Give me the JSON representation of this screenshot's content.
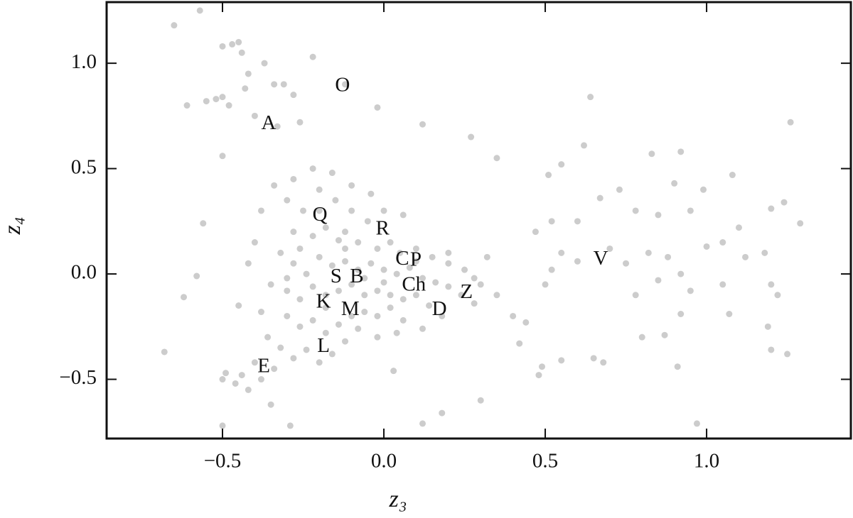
{
  "chart_data": {
    "type": "scatter",
    "x_label": "z₃",
    "y_label": "z₄",
    "xlim": [
      -0.859,
      1.447
    ],
    "ylim": [
      -0.781,
      1.29
    ],
    "xticks": [
      {
        "value": -0.5,
        "label": "−0.5"
      },
      {
        "value": 0,
        "label": "0.0"
      },
      {
        "value": 0.5,
        "label": "0.5"
      },
      {
        "value": 1,
        "label": "1.0"
      }
    ],
    "yticks": [
      {
        "value": -0.5,
        "label": "−0.5"
      },
      {
        "value": 0,
        "label": "0.0"
      },
      {
        "value": 0.5,
        "label": "0.5"
      },
      {
        "value": 1,
        "label": "1.0"
      }
    ],
    "color": "#cccccc",
    "x": [
      -0.65,
      -0.57,
      -0.5,
      -0.47,
      -0.45,
      -0.44,
      -0.22,
      -0.42,
      -0.37,
      -0.61,
      -0.55,
      -0.52,
      -0.5,
      -0.48,
      -0.43,
      -0.34,
      -0.31,
      -0.12,
      -0.02,
      -0.28,
      -0.4,
      -0.33,
      -0.26,
      0.12,
      0.27,
      0.64,
      0.83,
      0.92,
      1.26,
      0.62,
      0.55,
      0.51,
      0.35,
      1.08,
      0.9,
      0.99,
      0.73,
      0.67,
      1.2,
      1.24,
      1.29,
      1.1,
      0.95,
      0.85,
      0.78,
      0.6,
      0.52,
      0.47,
      0.55,
      0.6,
      0.52,
      0.5,
      0.7,
      0.75,
      0.82,
      0.88,
      0.92,
      1.0,
      1.05,
      1.12,
      1.18,
      1.2,
      1.22,
      1.05,
      0.95,
      0.85,
      0.78,
      0.92,
      1.07,
      1.19,
      1.2,
      1.25,
      0.8,
      0.87,
      0.65,
      0.68,
      0.55,
      0.49,
      0.48,
      0.91,
      0.97,
      0.42,
      0.44,
      0.4,
      0.3,
      0.18,
      0.12,
      -0.5,
      -0.29,
      -0.68,
      -0.62,
      -0.58,
      -0.49,
      -0.46,
      -0.42,
      -0.5,
      -0.35,
      -0.56,
      -0.5,
      0.03,
      -0.3,
      -0.25,
      -0.2,
      -0.15,
      -0.1,
      -0.05,
      -0.28,
      -0.22,
      -0.18,
      -0.12,
      -0.08,
      -0.02,
      0.02,
      0.05,
      0.1,
      0.15,
      0.2,
      0.25,
      0.28,
      0.3,
      -0.32,
      -0.28,
      -0.24,
      -0.2,
      -0.16,
      -0.12,
      -0.08,
      -0.04,
      0.0,
      0.04,
      0.08,
      0.12,
      0.16,
      0.2,
      0.24,
      0.28,
      -0.35,
      -0.3,
      -0.26,
      -0.22,
      -0.18,
      -0.14,
      -0.1,
      -0.06,
      -0.02,
      0.02,
      0.06,
      0.1,
      0.14,
      0.18,
      -0.3,
      -0.26,
      -0.22,
      -0.18,
      -0.14,
      -0.1,
      -0.06,
      -0.02,
      0.02,
      0.06,
      -0.36,
      -0.32,
      -0.28,
      -0.24,
      -0.2,
      -0.16,
      -0.4,
      -0.44,
      -0.38,
      -0.34,
      -0.4,
      -0.38,
      -0.34,
      -0.28,
      -0.22,
      -0.16,
      -0.1,
      -0.04,
      0.0,
      0.06,
      -0.42,
      -0.45,
      -0.38,
      -0.12,
      -0.06,
      0.0,
      0.1,
      0.2,
      0.32,
      0.35,
      -0.2,
      -0.14,
      -0.26,
      -0.3,
      -0.18,
      -0.08,
      0.04,
      0.12,
      -0.12,
      -0.02
    ],
    "values": [
      1.18,
      1.25,
      1.08,
      1.09,
      1.1,
      1.05,
      1.03,
      0.95,
      1.0,
      0.8,
      0.82,
      0.83,
      0.84,
      0.8,
      0.88,
      0.9,
      0.9,
      0.9,
      0.79,
      0.85,
      0.75,
      0.7,
      0.72,
      0.71,
      0.65,
      0.84,
      0.57,
      0.58,
      0.72,
      0.61,
      0.52,
      0.47,
      0.55,
      0.47,
      0.43,
      0.4,
      0.4,
      0.36,
      0.31,
      0.34,
      0.24,
      0.22,
      0.3,
      0.28,
      0.3,
      0.25,
      0.25,
      0.2,
      0.1,
      0.06,
      0.02,
      -0.05,
      0.12,
      0.05,
      0.1,
      0.08,
      0.0,
      0.13,
      0.15,
      0.08,
      0.1,
      -0.05,
      -0.1,
      -0.05,
      -0.08,
      -0.03,
      -0.1,
      -0.19,
      -0.19,
      -0.25,
      -0.36,
      -0.38,
      -0.3,
      -0.29,
      -0.4,
      -0.42,
      -0.41,
      -0.44,
      -0.48,
      -0.44,
      -0.71,
      -0.33,
      -0.23,
      -0.2,
      -0.6,
      -0.66,
      -0.71,
      -0.72,
      -0.72,
      -0.37,
      -0.11,
      -0.01,
      -0.47,
      -0.52,
      -0.55,
      -0.5,
      -0.62,
      0.24,
      0.56,
      -0.46,
      0.35,
      0.3,
      0.4,
      0.35,
      0.3,
      0.25,
      0.2,
      0.18,
      0.22,
      0.2,
      0.15,
      0.12,
      0.15,
      0.1,
      0.12,
      0.08,
      0.05,
      0.02,
      -0.02,
      -0.05,
      0.1,
      0.05,
      0.0,
      0.08,
      0.04,
      0.06,
      0.02,
      0.05,
      0.02,
      0.0,
      0.03,
      -0.02,
      -0.04,
      -0.06,
      -0.1,
      -0.14,
      -0.05,
      -0.08,
      -0.12,
      -0.06,
      -0.1,
      -0.08,
      -0.05,
      -0.1,
      -0.08,
      -0.1,
      -0.12,
      -0.1,
      -0.15,
      -0.2,
      -0.2,
      -0.25,
      -0.22,
      -0.28,
      -0.24,
      -0.2,
      -0.18,
      -0.2,
      -0.16,
      -0.22,
      -0.3,
      -0.35,
      -0.4,
      -0.36,
      -0.42,
      -0.38,
      -0.42,
      -0.48,
      -0.5,
      -0.45,
      0.15,
      0.3,
      0.42,
      0.45,
      0.5,
      0.48,
      0.42,
      0.38,
      0.3,
      0.28,
      0.05,
      -0.15,
      -0.18,
      0.12,
      -0.02,
      -0.04,
      0.06,
      0.1,
      0.08,
      -0.1,
      0.3,
      0.16,
      0.12,
      -0.02,
      -0.16,
      -0.26,
      -0.28,
      -0.26,
      -0.32,
      -0.3
    ],
    "annotations": [
      {
        "text": "O",
        "x": -0.128,
        "y": 0.889
      },
      {
        "text": "A",
        "x": -0.357,
        "y": 0.71
      },
      {
        "text": "Q",
        "x": -0.198,
        "y": 0.276
      },
      {
        "text": "R",
        "x": -0.004,
        "y": 0.209
      },
      {
        "text": "C",
        "x": 0.057,
        "y": 0.067
      },
      {
        "text": "P",
        "x": 0.099,
        "y": 0.061
      },
      {
        "text": "S",
        "x": -0.148,
        "y": -0.017
      },
      {
        "text": "B",
        "x": -0.084,
        "y": -0.017
      },
      {
        "text": "Ch",
        "x": 0.093,
        "y": -0.057
      },
      {
        "text": "Z",
        "x": 0.256,
        "y": -0.091
      },
      {
        "text": "D",
        "x": 0.172,
        "y": -0.172
      },
      {
        "text": "K",
        "x": -0.187,
        "y": -0.138
      },
      {
        "text": "M",
        "x": -0.104,
        "y": -0.172
      },
      {
        "text": "L",
        "x": -0.187,
        "y": -0.347
      },
      {
        "text": "E",
        "x": -0.372,
        "y": -0.444
      },
      {
        "text": "V",
        "x": 0.672,
        "y": 0.067
      }
    ]
  }
}
